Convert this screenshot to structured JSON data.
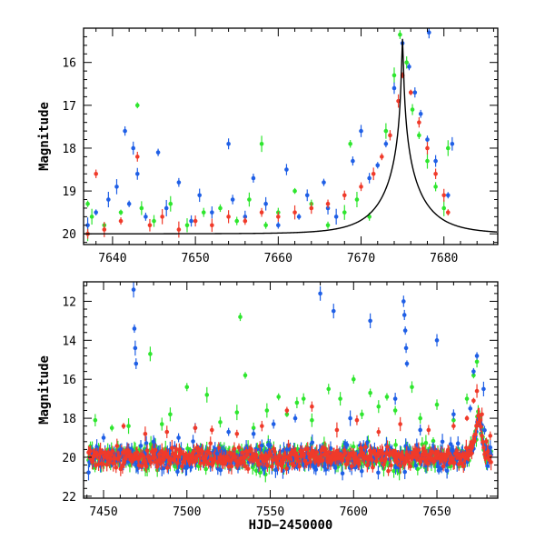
{
  "colors": {
    "green": "#2ee62e",
    "blue": "#1f5fe6",
    "red": "#f03a2a",
    "model": "#000000"
  },
  "chart_data": [
    {
      "type": "scatter",
      "panel": "top",
      "title": "",
      "xlabel": "",
      "ylabel": "Magnitude",
      "xlim": [
        7636.5,
        7686.5
      ],
      "ylim": [
        20.25,
        15.2
      ],
      "y_inverted": true,
      "x_ticks": [
        7640,
        7650,
        7660,
        7670,
        7680
      ],
      "y_ticks": [
        16,
        17,
        18,
        19,
        20
      ],
      "grid": false,
      "legend": "none",
      "series": [
        {
          "color": "green",
          "points": [
            [
              7637.0,
              19.3
            ],
            [
              7637.0,
              20.0
            ],
            [
              7637.5,
              19.6
            ],
            [
              7639.0,
              19.8
            ],
            [
              7641.0,
              19.5
            ],
            [
              7643.0,
              17.0
            ],
            [
              7643.5,
              19.4
            ],
            [
              7645.0,
              19.7
            ],
            [
              7647.0,
              19.3
            ],
            [
              7649.0,
              19.8
            ],
            [
              7651.0,
              19.5
            ],
            [
              7653.0,
              19.4
            ],
            [
              7655.0,
              19.7
            ],
            [
              7656.5,
              19.2
            ],
            [
              7658.0,
              17.9
            ],
            [
              7658.5,
              19.8
            ],
            [
              7660.0,
              19.5
            ],
            [
              7662.0,
              19.0
            ],
            [
              7664.0,
              19.3
            ],
            [
              7666.0,
              19.8
            ],
            [
              7668.0,
              19.5
            ],
            [
              7668.7,
              17.9
            ],
            [
              7669.5,
              19.2
            ],
            [
              7671.0,
              19.6
            ],
            [
              7673.0,
              17.6
            ],
            [
              7674.0,
              16.3
            ],
            [
              7674.7,
              15.35
            ],
            [
              7675.5,
              16.0
            ],
            [
              7676.2,
              17.1
            ],
            [
              7677.0,
              17.7
            ],
            [
              7678.0,
              18.3
            ],
            [
              7679.0,
              18.9
            ],
            [
              7680.0,
              19.4
            ],
            [
              7680.5,
              18.0
            ]
          ]
        },
        {
          "color": "blue",
          "points": [
            [
              7637.0,
              19.8
            ],
            [
              7638.0,
              19.5
            ],
            [
              7639.5,
              19.2
            ],
            [
              7640.5,
              18.9
            ],
            [
              7641.5,
              17.6
            ],
            [
              7642.0,
              19.3
            ],
            [
              7642.5,
              18.0
            ],
            [
              7643.0,
              18.6
            ],
            [
              7644.0,
              19.6
            ],
            [
              7645.5,
              18.1
            ],
            [
              7646.5,
              19.4
            ],
            [
              7648.0,
              18.8
            ],
            [
              7649.5,
              19.7
            ],
            [
              7650.5,
              19.1
            ],
            [
              7652.0,
              19.5
            ],
            [
              7654.0,
              17.9
            ],
            [
              7654.5,
              19.2
            ],
            [
              7656.0,
              19.6
            ],
            [
              7657.0,
              18.7
            ],
            [
              7658.5,
              19.3
            ],
            [
              7660.0,
              19.8
            ],
            [
              7661.0,
              18.5
            ],
            [
              7662.5,
              19.6
            ],
            [
              7663.5,
              19.1
            ],
            [
              7665.5,
              18.8
            ],
            [
              7666.0,
              19.4
            ],
            [
              7667.0,
              19.6
            ],
            [
              7669.0,
              18.3
            ],
            [
              7670.0,
              17.6
            ],
            [
              7671.0,
              18.7
            ],
            [
              7672.0,
              18.4
            ],
            [
              7673.0,
              17.9
            ],
            [
              7674.0,
              16.6
            ],
            [
              7675.0,
              15.55
            ],
            [
              7675.8,
              16.1
            ],
            [
              7676.5,
              16.7
            ],
            [
              7677.2,
              17.2
            ],
            [
              7678.0,
              17.8
            ],
            [
              7679.0,
              18.3
            ],
            [
              7680.5,
              19.1
            ],
            [
              7681.0,
              17.9
            ],
            [
              7678.2,
              15.3
            ]
          ]
        },
        {
          "color": "red",
          "points": [
            [
              7637.0,
              20.0
            ],
            [
              7638.0,
              18.6
            ],
            [
              7639.0,
              19.9
            ],
            [
              7641.0,
              19.7
            ],
            [
              7643.0,
              18.2
            ],
            [
              7644.5,
              19.8
            ],
            [
              7646.0,
              19.6
            ],
            [
              7648.0,
              19.9
            ],
            [
              7650.0,
              19.7
            ],
            [
              7652.0,
              19.8
            ],
            [
              7654.0,
              19.6
            ],
            [
              7656.0,
              19.7
            ],
            [
              7658.0,
              19.5
            ],
            [
              7660.0,
              19.6
            ],
            [
              7662.0,
              19.5
            ],
            [
              7664.0,
              19.4
            ],
            [
              7666.0,
              19.3
            ],
            [
              7668.0,
              19.1
            ],
            [
              7670.0,
              18.9
            ],
            [
              7671.5,
              18.6
            ],
            [
              7672.5,
              18.2
            ],
            [
              7673.5,
              17.7
            ],
            [
              7674.5,
              16.9
            ],
            [
              7675.0,
              16.3
            ],
            [
              7676.0,
              16.7
            ],
            [
              7677.0,
              17.4
            ],
            [
              7678.0,
              18.0
            ],
            [
              7679.0,
              18.6
            ],
            [
              7680.0,
              19.1
            ],
            [
              7680.5,
              19.5
            ]
          ]
        }
      ],
      "model_curve": {
        "color": "model",
        "t0": 7675.0,
        "baseline": 20.0,
        "peak": 15.45,
        "tE": 5.0
      }
    },
    {
      "type": "scatter",
      "panel": "bottom",
      "title": "",
      "xlabel": "HJD−2450000",
      "ylabel": "Magnitude",
      "xlim": [
        7438,
        7686.5
      ],
      "ylim": [
        22.1,
        11.0
      ],
      "y_inverted": true,
      "x_ticks": [
        7450,
        7500,
        7550,
        7600,
        7650
      ],
      "y_ticks": [
        12,
        14,
        16,
        18,
        20,
        22
      ],
      "grid": false,
      "legend": "none",
      "series": [
        {
          "color": "green",
          "points": [
            [
              7445,
              18.1
            ],
            [
              7455,
              18.5
            ],
            [
              7465,
              18.4
            ],
            [
              7478,
              14.7
            ],
            [
              7485,
              18.3
            ],
            [
              7490,
              17.8
            ],
            [
              7500,
              16.4
            ],
            [
              7512,
              16.8
            ],
            [
              7520,
              18.2
            ],
            [
              7530,
              17.7
            ],
            [
              7532,
              12.8
            ],
            [
              7535,
              15.8
            ],
            [
              7540,
              18.5
            ],
            [
              7548,
              17.6
            ],
            [
              7555,
              16.9
            ],
            [
              7560,
              17.8
            ],
            [
              7566,
              17.2
            ],
            [
              7570,
              17.0
            ],
            [
              7575,
              18.1
            ],
            [
              7585,
              16.5
            ],
            [
              7592,
              17.0
            ],
            [
              7600,
              16.0
            ],
            [
              7605,
              17.8
            ],
            [
              7610,
              16.7
            ],
            [
              7615,
              17.4
            ],
            [
              7620,
              16.9
            ],
            [
              7625,
              17.6
            ],
            [
              7635,
              16.4
            ],
            [
              7640,
              18.0
            ],
            [
              7650,
              17.3
            ],
            [
              7660,
              18.1
            ],
            [
              7668,
              17.0
            ],
            [
              7672,
              15.8
            ],
            [
              7674,
              15.1
            ]
          ]
        },
        {
          "color": "blue",
          "points": [
            [
              7450,
              19.0
            ],
            [
              7460,
              19.6
            ],
            [
              7468,
              11.4
            ],
            [
              7468.5,
              13.4
            ],
            [
              7469,
              14.4
            ],
            [
              7469.5,
              15.2
            ],
            [
              7480,
              19.2
            ],
            [
              7495,
              19.0
            ],
            [
              7505,
              18.5
            ],
            [
              7518,
              19.8
            ],
            [
              7525,
              18.7
            ],
            [
              7540,
              18.8
            ],
            [
              7545,
              19.4
            ],
            [
              7552,
              18.3
            ],
            [
              7560,
              19.6
            ],
            [
              7565,
              18.0
            ],
            [
              7580,
              11.6
            ],
            [
              7588,
              12.5
            ],
            [
              7595,
              19.3
            ],
            [
              7598,
              18.0
            ],
            [
              7610,
              13.0
            ],
            [
              7625,
              17.0
            ],
            [
              7630,
              12.0
            ],
            [
              7630.5,
              12.7
            ],
            [
              7631,
              13.5
            ],
            [
              7631.5,
              14.4
            ],
            [
              7632,
              15.2
            ],
            [
              7640,
              18.6
            ],
            [
              7650,
              14.0
            ],
            [
              7660,
              17.8
            ],
            [
              7670,
              17.5
            ],
            [
              7672,
              15.6
            ],
            [
              7674,
              14.8
            ],
            [
              7678,
              16.5
            ],
            [
              7682,
              19.5
            ]
          ]
        },
        {
          "color": "red",
          "points": [
            [
              7462,
              18.4
            ],
            [
              7475,
              18.8
            ],
            [
              7488,
              18.7
            ],
            [
              7505,
              18.5
            ],
            [
              7515,
              18.6
            ],
            [
              7530,
              18.8
            ],
            [
              7545,
              18.4
            ],
            [
              7560,
              17.6
            ],
            [
              7575,
              17.4
            ],
            [
              7590,
              18.6
            ],
            [
              7602,
              18.1
            ],
            [
              7615,
              18.7
            ],
            [
              7628,
              18.3
            ],
            [
              7645,
              18.6
            ],
            [
              7660,
              18.4
            ],
            [
              7668,
              18.0
            ],
            [
              7672,
              17.1
            ],
            [
              7674,
              16.6
            ],
            [
              7677,
              17.8
            ],
            [
              7682,
              18.9
            ]
          ]
        }
      ],
      "base_cloud": {
        "x_start": 7441,
        "x_end": 7683,
        "baseline": 20.0,
        "t0": 7675.0,
        "tE": 5.0
      }
    }
  ]
}
